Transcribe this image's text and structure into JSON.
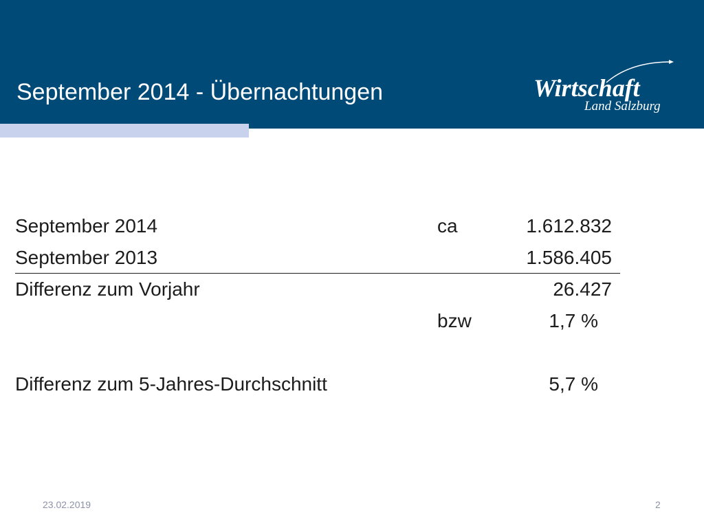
{
  "slide": {
    "title": "September 2014 - Übernachtungen",
    "logo": {
      "main": "Wirtschaft",
      "sub": "Land Salzburg"
    }
  },
  "stats": {
    "rows": [
      {
        "label": "September 2014",
        "qualifier": "ca",
        "value": "1.612.832"
      },
      {
        "label": "September 2013",
        "qualifier": "",
        "value": "1.586.405"
      },
      {
        "label": "Differenz zum Vorjahr",
        "qualifier": "",
        "value": "26.427"
      },
      {
        "label": "",
        "qualifier": "bzw",
        "value": "1,7 %"
      },
      {
        "label": "Differenz zum 5-Jahres-Durchschnitt",
        "qualifier": "",
        "value": "5,7 %"
      }
    ]
  },
  "footer": {
    "date": "23.02.2019",
    "page": "2"
  },
  "colors": {
    "header": "#004a78",
    "accent": "#c8d2ec",
    "text": "#1c1c1c",
    "footer_text": "#8a93a8"
  }
}
